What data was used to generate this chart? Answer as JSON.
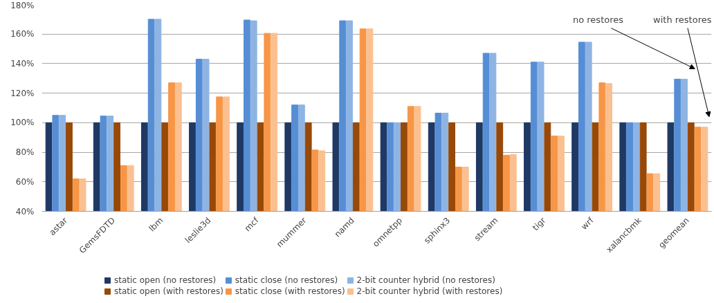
{
  "chart_data": {
    "type": "bar",
    "categories": [
      "astar",
      "GemsFDTD",
      "lbm",
      "leslie3d",
      "mcf",
      "mummer",
      "namd",
      "omnetpp",
      "sphinx3",
      "stream",
      "tigr",
      "wrf",
      "xalancbmk",
      "geomean"
    ],
    "series": [
      {
        "name": "static open (no restores)",
        "color": "#1f3864",
        "values": [
          100,
          100,
          100,
          100,
          100,
          100,
          100,
          100,
          100,
          100,
          100,
          100,
          100,
          100
        ]
      },
      {
        "name": "static close (no restores)",
        "color": "#558ed5",
        "values": [
          105,
          104.5,
          170,
          143,
          169.5,
          112,
          169,
          100,
          106.5,
          147,
          141,
          154.5,
          100,
          129.5
        ]
      },
      {
        "name": "2-bit counter hybrid (no restores)",
        "color": "#8eb4e3",
        "values": [
          105,
          104.5,
          170,
          143,
          169,
          112,
          169,
          100,
          106.5,
          147,
          141,
          154.5,
          100,
          129.5
        ]
      },
      {
        "name": "static open (with restores)",
        "color": "#984807",
        "values": [
          100,
          100,
          100,
          100,
          100,
          100,
          100,
          100,
          100,
          100,
          100,
          100,
          100,
          100
        ]
      },
      {
        "name": "static close (with restores)",
        "color": "#f79646",
        "values": [
          62,
          71,
          127,
          117.5,
          160.5,
          81.5,
          163.5,
          111,
          70,
          78,
          91,
          127,
          65.5,
          97
        ]
      },
      {
        "name": "2-bit counter hybrid (with restores)",
        "color": "#fac090",
        "values": [
          62,
          71,
          127,
          117.5,
          160.5,
          81,
          163.5,
          111,
          70,
          78.5,
          91,
          126.5,
          65.5,
          97
        ]
      }
    ],
    "ylim": [
      40,
      180
    ],
    "yticks": [
      {
        "value": 40,
        "label": "40%"
      },
      {
        "value": 60,
        "label": "60%"
      },
      {
        "value": 80,
        "label": "80%"
      },
      {
        "value": 100,
        "label": "100%"
      },
      {
        "value": 120,
        "label": "120%"
      },
      {
        "value": 140,
        "label": "140%"
      },
      {
        "value": 160,
        "label": "160%"
      },
      {
        "value": 180,
        "label": "180%"
      }
    ],
    "grid": "y",
    "legend": "bottom",
    "annotations": [
      "no restores",
      "with restores"
    ]
  }
}
